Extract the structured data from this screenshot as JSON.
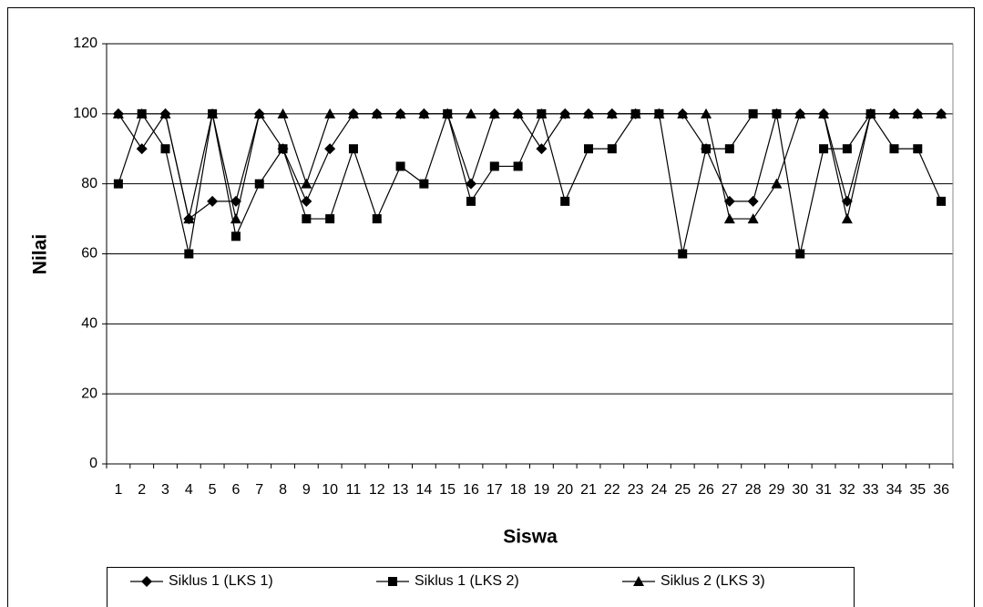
{
  "chart_data": {
    "type": "line",
    "x_label": "Siswa",
    "y_label": "Nilai",
    "categories": [
      "1",
      "2",
      "3",
      "4",
      "5",
      "6",
      "7",
      "8",
      "9",
      "10",
      "11",
      "12",
      "13",
      "14",
      "15",
      "16",
      "17",
      "18",
      "19",
      "20",
      "21",
      "22",
      "23",
      "24",
      "25",
      "26",
      "27",
      "28",
      "29",
      "30",
      "31",
      "32",
      "33",
      "34",
      "35",
      "36"
    ],
    "series": [
      {
        "name": "Siklus 1 (LKS 1)",
        "color": "#000000",
        "marker": "diamond",
        "values": [
          100,
          90,
          100,
          70,
          75,
          75,
          100,
          90,
          75,
          90,
          100,
          100,
          100,
          100,
          100,
          80,
          100,
          100,
          90,
          100,
          100,
          100,
          100,
          100,
          100,
          90,
          75,
          75,
          100,
          100,
          100,
          75,
          100,
          100,
          100,
          100
        ]
      },
      {
        "name": "Siklus 1 (LKS 2)",
        "color": "#000000",
        "marker": "square",
        "values": [
          80,
          100,
          90,
          60,
          100,
          65,
          80,
          90,
          70,
          70,
          90,
          70,
          85,
          80,
          100,
          75,
          85,
          85,
          100,
          75,
          90,
          90,
          100,
          100,
          60,
          90,
          90,
          100,
          100,
          60,
          90,
          90,
          100,
          90,
          90,
          75
        ]
      },
      {
        "name": "Siklus 2 (LKS 3)",
        "color": "#000000",
        "marker": "triangle",
        "values": [
          100,
          100,
          100,
          70,
          100,
          70,
          100,
          100,
          80,
          100,
          100,
          100,
          100,
          100,
          100,
          100,
          100,
          100,
          100,
          100,
          100,
          100,
          100,
          100,
          100,
          100,
          70,
          70,
          80,
          100,
          100,
          70,
          100,
          100,
          100,
          100
        ]
      }
    ],
    "ylim": [
      0,
      120
    ],
    "yticks": [
      0,
      20,
      40,
      60,
      80,
      100,
      120
    ],
    "grid": true
  }
}
